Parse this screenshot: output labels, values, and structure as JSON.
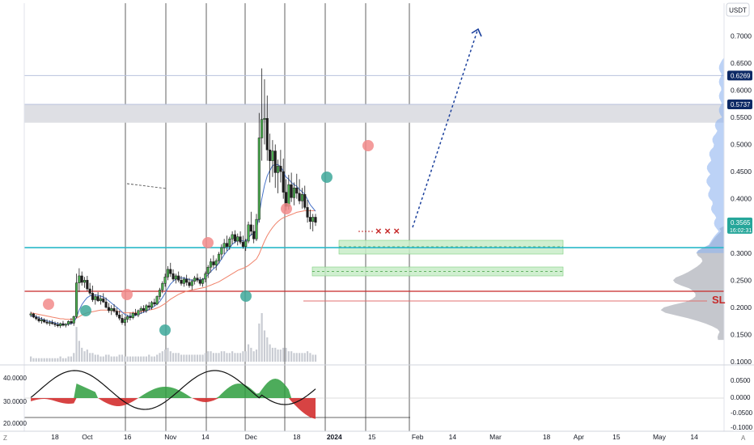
{
  "chart_data": {
    "type": "candlestick",
    "currency": "USDT",
    "price_axis": {
      "ylim": [
        0.1,
        0.76
      ],
      "ticks": [
        "0.7000",
        "0.6500",
        "0.6000",
        "0.5500",
        "0.5000",
        "0.4500",
        "0.4000",
        "0.3500",
        "0.3000",
        "0.2500",
        "0.2000",
        "0.1500",
        "0.1000"
      ],
      "labels": [
        {
          "value": 0.6269,
          "text": "0.6269",
          "bg": "#0d2a66",
          "fg": "#ffffff"
        },
        {
          "value": 0.5737,
          "text": "0.5737",
          "bg": "#0d2a66",
          "fg": "#ffffff"
        },
        {
          "value": 0.3565,
          "text": "0.3565",
          "sub": "16:02:31",
          "bg": "#26a69a",
          "fg": "#ffffff"
        }
      ]
    },
    "time_axis": {
      "ticks": [
        {
          "label": "18",
          "day": 0
        },
        {
          "label": "Oct",
          "day": 12
        },
        {
          "label": "16",
          "day": 27
        },
        {
          "label": "Nov",
          "day": 43
        },
        {
          "label": "14",
          "day": 56
        },
        {
          "label": "Dec",
          "day": 73
        },
        {
          "label": "18",
          "day": 90
        },
        {
          "label": "2024",
          "day": 104,
          "bold": true
        },
        {
          "label": "15",
          "day": 118
        },
        {
          "label": "Feb",
          "day": 135
        },
        {
          "label": "14",
          "day": 148
        },
        {
          "label": "Mar",
          "day": 164
        },
        {
          "label": "18",
          "day": 183
        },
        {
          "label": "Apr",
          "day": 195
        },
        {
          "label": "15",
          "day": 209
        },
        {
          "label": "May",
          "day": 225
        },
        {
          "label": "14",
          "day": 238
        }
      ],
      "corner_left": "Z",
      "corner_right": "A"
    },
    "candles_x_start_day": -9,
    "candles": [
      [
        0.186,
        0.192,
        0.182,
        0.188
      ],
      [
        0.188,
        0.19,
        0.18,
        0.182
      ],
      [
        0.182,
        0.186,
        0.176,
        0.179
      ],
      [
        0.179,
        0.184,
        0.172,
        0.175
      ],
      [
        0.175,
        0.182,
        0.17,
        0.177
      ],
      [
        0.177,
        0.18,
        0.171,
        0.173
      ],
      [
        0.173,
        0.178,
        0.168,
        0.171
      ],
      [
        0.171,
        0.176,
        0.166,
        0.172
      ],
      [
        0.172,
        0.177,
        0.168,
        0.17
      ],
      [
        0.17,
        0.174,
        0.164,
        0.168
      ],
      [
        0.168,
        0.173,
        0.163,
        0.166
      ],
      [
        0.166,
        0.172,
        0.162,
        0.17
      ],
      [
        0.17,
        0.175,
        0.165,
        0.167
      ],
      [
        0.167,
        0.171,
        0.163,
        0.169
      ],
      [
        0.169,
        0.176,
        0.166,
        0.174
      ],
      [
        0.174,
        0.18,
        0.168,
        0.171
      ],
      [
        0.171,
        0.185,
        0.166,
        0.183
      ],
      [
        0.183,
        0.262,
        0.18,
        0.245
      ],
      [
        0.245,
        0.272,
        0.228,
        0.258
      ],
      [
        0.258,
        0.266,
        0.24,
        0.246
      ],
      [
        0.246,
        0.256,
        0.236,
        0.25
      ],
      [
        0.25,
        0.258,
        0.23,
        0.234
      ],
      [
        0.234,
        0.245,
        0.222,
        0.226
      ],
      [
        0.226,
        0.24,
        0.21,
        0.214
      ],
      [
        0.214,
        0.224,
        0.205,
        0.22
      ],
      [
        0.22,
        0.228,
        0.21,
        0.212
      ],
      [
        0.212,
        0.222,
        0.205,
        0.216
      ],
      [
        0.216,
        0.226,
        0.208,
        0.21
      ],
      [
        0.21,
        0.218,
        0.198,
        0.2
      ],
      [
        0.2,
        0.208,
        0.19,
        0.194
      ],
      [
        0.194,
        0.204,
        0.186,
        0.198
      ],
      [
        0.198,
        0.206,
        0.19,
        0.193
      ],
      [
        0.193,
        0.199,
        0.182,
        0.186
      ],
      [
        0.186,
        0.194,
        0.176,
        0.18
      ],
      [
        0.18,
        0.188,
        0.168,
        0.172
      ],
      [
        0.172,
        0.182,
        0.166,
        0.178
      ],
      [
        0.178,
        0.186,
        0.172,
        0.183
      ],
      [
        0.183,
        0.19,
        0.176,
        0.181
      ],
      [
        0.181,
        0.192,
        0.178,
        0.189
      ],
      [
        0.189,
        0.197,
        0.184,
        0.186
      ],
      [
        0.186,
        0.196,
        0.182,
        0.194
      ],
      [
        0.194,
        0.202,
        0.188,
        0.198
      ],
      [
        0.198,
        0.204,
        0.19,
        0.194
      ],
      [
        0.194,
        0.206,
        0.19,
        0.203
      ],
      [
        0.203,
        0.21,
        0.196,
        0.2
      ],
      [
        0.2,
        0.212,
        0.196,
        0.209
      ],
      [
        0.209,
        0.216,
        0.202,
        0.206
      ],
      [
        0.206,
        0.222,
        0.204,
        0.22
      ],
      [
        0.22,
        0.236,
        0.214,
        0.232
      ],
      [
        0.232,
        0.248,
        0.226,
        0.244
      ],
      [
        0.244,
        0.262,
        0.238,
        0.256
      ],
      [
        0.256,
        0.276,
        0.25,
        0.27
      ],
      [
        0.27,
        0.282,
        0.256,
        0.262
      ],
      [
        0.262,
        0.27,
        0.248,
        0.252
      ],
      [
        0.252,
        0.262,
        0.244,
        0.258
      ],
      [
        0.258,
        0.266,
        0.246,
        0.25
      ],
      [
        0.25,
        0.258,
        0.24,
        0.244
      ],
      [
        0.244,
        0.256,
        0.238,
        0.252
      ],
      [
        0.252,
        0.26,
        0.24,
        0.246
      ],
      [
        0.246,
        0.254,
        0.236,
        0.24
      ],
      [
        0.24,
        0.252,
        0.232,
        0.248
      ],
      [
        0.248,
        0.258,
        0.242,
        0.254
      ],
      [
        0.254,
        0.262,
        0.246,
        0.25
      ],
      [
        0.25,
        0.256,
        0.24,
        0.244
      ],
      [
        0.244,
        0.254,
        0.238,
        0.252
      ],
      [
        0.252,
        0.266,
        0.246,
        0.262
      ],
      [
        0.262,
        0.278,
        0.254,
        0.274
      ],
      [
        0.274,
        0.29,
        0.264,
        0.284
      ],
      [
        0.284,
        0.296,
        0.272,
        0.278
      ],
      [
        0.278,
        0.29,
        0.268,
        0.286
      ],
      [
        0.286,
        0.302,
        0.28,
        0.298
      ],
      [
        0.298,
        0.316,
        0.288,
        0.31
      ],
      [
        0.31,
        0.326,
        0.298,
        0.318
      ],
      [
        0.318,
        0.332,
        0.304,
        0.312
      ],
      [
        0.312,
        0.33,
        0.306,
        0.326
      ],
      [
        0.326,
        0.34,
        0.316,
        0.334
      ],
      [
        0.334,
        0.342,
        0.318,
        0.322
      ],
      [
        0.322,
        0.336,
        0.314,
        0.33
      ],
      [
        0.33,
        0.34,
        0.316,
        0.32
      ],
      [
        0.32,
        0.332,
        0.308,
        0.312
      ],
      [
        0.312,
        0.326,
        0.304,
        0.322
      ],
      [
        0.322,
        0.358,
        0.318,
        0.352
      ],
      [
        0.352,
        0.376,
        0.332,
        0.34
      ],
      [
        0.34,
        0.352,
        0.318,
        0.326
      ],
      [
        0.326,
        0.372,
        0.322,
        0.362
      ],
      [
        0.362,
        0.558,
        0.356,
        0.512
      ],
      [
        0.512,
        0.64,
        0.47,
        0.546
      ],
      [
        0.546,
        0.62,
        0.5,
        0.548
      ],
      [
        0.548,
        0.59,
        0.47,
        0.49
      ],
      [
        0.49,
        0.52,
        0.43,
        0.47
      ],
      [
        0.47,
        0.508,
        0.44,
        0.488
      ],
      [
        0.488,
        0.5,
        0.42,
        0.448
      ],
      [
        0.448,
        0.472,
        0.41,
        0.46
      ],
      [
        0.46,
        0.49,
        0.43,
        0.45
      ],
      [
        0.45,
        0.474,
        0.4,
        0.412
      ],
      [
        0.412,
        0.436,
        0.378,
        0.386
      ],
      [
        0.386,
        0.444,
        0.38,
        0.426
      ],
      [
        0.426,
        0.448,
        0.394,
        0.402
      ],
      [
        0.402,
        0.43,
        0.388,
        0.42
      ],
      [
        0.42,
        0.446,
        0.4,
        0.41
      ],
      [
        0.41,
        0.436,
        0.39,
        0.396
      ],
      [
        0.396,
        0.42,
        0.382,
        0.408
      ],
      [
        0.408,
        0.424,
        0.38,
        0.384
      ],
      [
        0.384,
        0.398,
        0.356,
        0.366
      ],
      [
        0.366,
        0.38,
        0.344,
        0.358
      ],
      [
        0.358,
        0.372,
        0.34,
        0.366
      ],
      [
        0.366,
        0.372,
        0.35,
        0.3565
      ]
    ],
    "volumes": [
      3,
      2,
      2,
      2,
      2,
      2,
      2,
      2,
      2,
      2,
      2,
      3,
      2,
      2,
      3,
      3,
      5,
      20,
      12,
      8,
      6,
      7,
      5,
      5,
      4,
      4,
      3,
      3,
      4,
      4,
      3,
      3,
      3,
      4,
      4,
      3,
      3,
      3,
      3,
      3,
      3,
      3,
      3,
      3,
      4,
      3,
      3,
      4,
      5,
      6,
      7,
      8,
      6,
      5,
      5,
      5,
      4,
      4,
      4,
      4,
      4,
      4,
      4,
      4,
      4,
      5,
      6,
      6,
      5,
      5,
      5,
      6,
      6,
      5,
      5,
      6,
      5,
      5,
      5,
      6,
      6,
      10,
      8,
      6,
      7,
      22,
      28,
      18,
      14,
      10,
      8,
      8,
      7,
      7,
      8,
      8,
      6,
      6,
      5,
      5,
      5,
      5,
      5,
      6,
      5,
      4,
      4
    ],
    "moving_averages": [
      {
        "name": "",
        "color": "#f0836b",
        "values": [
          0.19,
          0.189,
          0.188,
          0.187,
          0.186,
          0.185,
          0.184,
          0.183,
          0.182,
          0.181,
          0.18,
          0.179,
          0.179,
          0.178,
          0.178,
          0.178,
          0.178,
          0.18,
          0.183,
          0.186,
          0.188,
          0.19,
          0.191,
          0.192,
          0.193,
          0.194,
          0.195,
          0.195,
          0.195,
          0.195,
          0.194,
          0.194,
          0.193,
          0.192,
          0.191,
          0.19,
          0.19,
          0.19,
          0.19,
          0.19,
          0.191,
          0.192,
          0.193,
          0.194,
          0.195,
          0.196,
          0.197,
          0.199,
          0.201,
          0.204,
          0.207,
          0.211,
          0.215,
          0.218,
          0.221,
          0.224,
          0.226,
          0.228,
          0.23,
          0.231,
          0.232,
          0.233,
          0.234,
          0.235,
          0.236,
          0.237,
          0.239,
          0.241,
          0.243,
          0.245,
          0.247,
          0.25,
          0.253,
          0.256,
          0.259,
          0.262,
          0.265,
          0.268,
          0.27,
          0.272,
          0.274,
          0.277,
          0.281,
          0.285,
          0.289,
          0.298,
          0.31,
          0.322,
          0.332,
          0.34,
          0.347,
          0.353,
          0.358,
          0.362,
          0.365,
          0.367,
          0.369,
          0.371,
          0.373,
          0.375,
          0.376,
          0.377,
          0.378,
          0.378,
          0.378,
          0.378,
          0.378
        ]
      },
      {
        "name": "",
        "color": "#4a74c9",
        "values": [
          0.184,
          0.184,
          0.183,
          0.181,
          0.179,
          0.177,
          0.175,
          0.174,
          0.173,
          0.171,
          0.17,
          0.169,
          0.169,
          0.168,
          0.169,
          0.17,
          0.172,
          0.182,
          0.195,
          0.205,
          0.212,
          0.218,
          0.221,
          0.222,
          0.223,
          0.222,
          0.221,
          0.219,
          0.216,
          0.212,
          0.208,
          0.204,
          0.2,
          0.196,
          0.191,
          0.187,
          0.185,
          0.184,
          0.184,
          0.185,
          0.187,
          0.189,
          0.191,
          0.193,
          0.196,
          0.199,
          0.202,
          0.206,
          0.211,
          0.218,
          0.226,
          0.235,
          0.243,
          0.248,
          0.252,
          0.254,
          0.254,
          0.254,
          0.253,
          0.251,
          0.25,
          0.25,
          0.251,
          0.251,
          0.252,
          0.255,
          0.26,
          0.266,
          0.271,
          0.275,
          0.281,
          0.289,
          0.297,
          0.303,
          0.309,
          0.316,
          0.32,
          0.323,
          0.324,
          0.322,
          0.322,
          0.328,
          0.334,
          0.336,
          0.342,
          0.37,
          0.4,
          0.425,
          0.442,
          0.452,
          0.461,
          0.463,
          0.463,
          0.459,
          0.451,
          0.44,
          0.436,
          0.43,
          0.426,
          0.423,
          0.417,
          0.413,
          0.408,
          0.399,
          0.389,
          0.383,
          0.377
        ]
      }
    ],
    "horizontal_levels": [
      {
        "value": 0.6269,
        "color": "#b8c2dd"
      },
      {
        "value": 0.5737,
        "color": "#b8c2dd"
      }
    ],
    "zones": [
      {
        "type": "supply",
        "from": 0.54,
        "to": 0.574,
        "color": "#dedfe4"
      }
    ],
    "support_line": {
      "value": 0.31,
      "color": "#2ab8c9"
    },
    "sl_line": {
      "value": 0.232,
      "color": "#c62828"
    },
    "sl_label": "SL",
    "markers": "x x x",
    "volume_profile": "right edge",
    "indicator_left_axis": [
      "40.0000",
      "30.0000",
      "20.0000"
    ],
    "indicator_right_axis": [
      "0.0500",
      "0.0000",
      "-0.0500",
      "-0.1000"
    ]
  }
}
